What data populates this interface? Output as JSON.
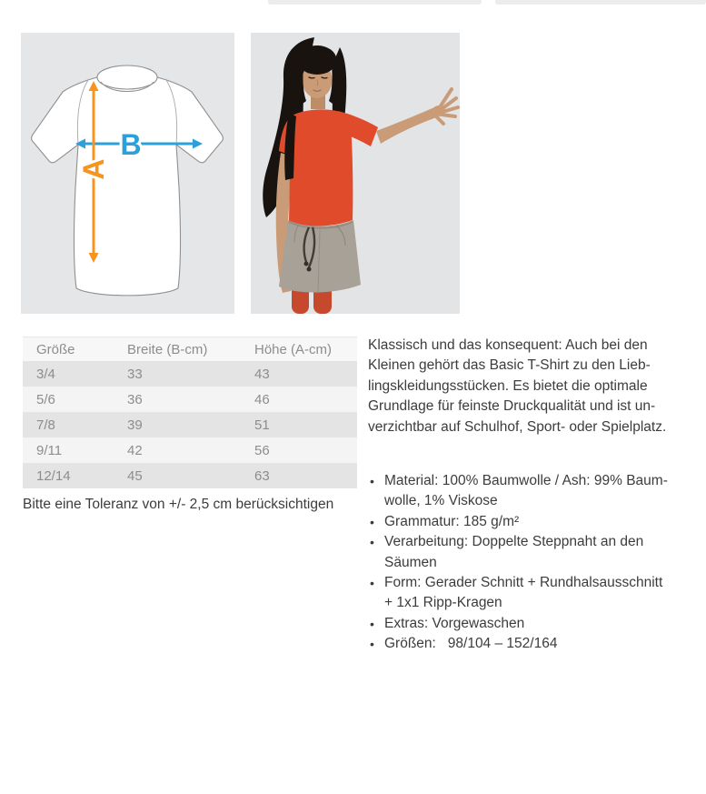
{
  "size_diagram": {
    "label_a": "A",
    "label_b": "B",
    "arrow_a_color": "#f7941e",
    "arrow_b_color": "#2ba0da",
    "panel_background": "#e5e6e8"
  },
  "model_photo": {
    "background": "#e3e4e6",
    "shirt_color": "#e04b2c",
    "skirt_color": "#a8a198",
    "tights_color": "#c7492d",
    "hair_color": "#191310",
    "skin_color": "#c99c77"
  },
  "size_table": {
    "headers": [
      "Größe",
      "Breite (B-cm)",
      "Höhe (A-cm)"
    ],
    "rows": [
      [
        "3/4",
        "33",
        "43"
      ],
      [
        "5/6",
        "36",
        "46"
      ],
      [
        "7/8",
        "39",
        "51"
      ],
      [
        "9/11",
        "42",
        "56"
      ],
      [
        "12/14",
        "45",
        "63"
      ]
    ],
    "note": "Bitte eine Toleranz von +/- 2,5 cm berücksichtigen"
  },
  "description": {
    "lines": [
      "Klassisch und das konsequent: Auch bei den",
      "Kleinen gehört das Basic T-Shirt zu den Lieb-",
      "lingskleidungsstücken. Es bietet die optimale",
      "Grundlage für feinste Druckqualität und ist un-",
      "verzichtbar auf Schulhof, Sport- oder Spielplatz."
    ],
    "bullets": [
      [
        "Material: 100% Baumwolle / Ash: 99% Baum-",
        "wolle, 1% Viskose"
      ],
      [
        "Grammatur: 185 g/m²"
      ],
      [
        "Verarbeitung: Doppelte Steppnaht an den",
        "Säumen"
      ],
      [
        "Form: Gerader Schnitt + Rundhalsausschnitt",
        "+ 1x1 Ripp-Kragen"
      ],
      [
        "Extras: Vorgewaschen"
      ],
      [
        "Größen:   98/104 – 152/164"
      ]
    ]
  }
}
